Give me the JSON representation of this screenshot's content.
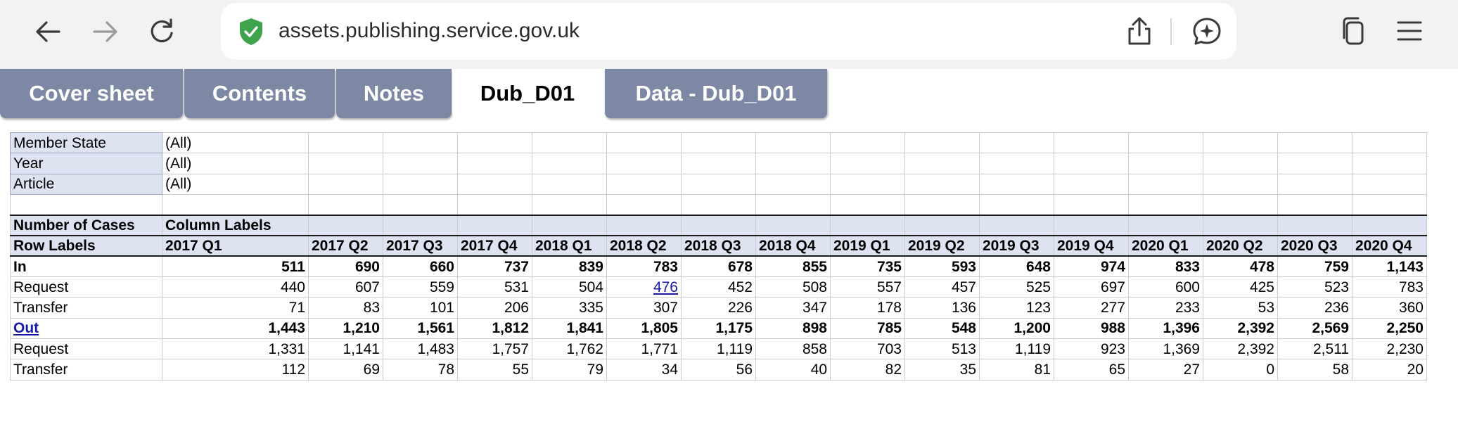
{
  "browser": {
    "url": "assets.publishing.service.gov.uk",
    "icons": {
      "back": "back-arrow-icon",
      "forward": "forward-arrow-icon",
      "reload": "reload-icon",
      "secure": "shield-check-icon",
      "share": "share-icon",
      "assistant": "assistant-icon",
      "tabs": "tabs-icon",
      "menu": "hamburger-menu-icon"
    }
  },
  "sheet_tabs": [
    {
      "label": "Cover sheet",
      "active": false
    },
    {
      "label": "Contents",
      "active": false
    },
    {
      "label": "Notes",
      "active": false
    },
    {
      "label": "Dub_D01",
      "active": true
    },
    {
      "label": "Data - Dub_D01",
      "active": false
    }
  ],
  "filters": [
    {
      "name": "Member State",
      "value": "(All)"
    },
    {
      "name": "Year",
      "value": "(All)"
    },
    {
      "name": "Article",
      "value": "(All)"
    }
  ],
  "pivot": {
    "values_label": "Number of Cases",
    "column_labels": "Column Labels",
    "row_labels": "Row Labels",
    "columns": [
      "2017 Q1",
      "2017 Q2",
      "2017 Q3",
      "2017 Q4",
      "2018 Q1",
      "2018 Q2",
      "2018 Q3",
      "2018 Q4",
      "2019 Q1",
      "2019 Q2",
      "2019 Q3",
      "2019 Q4",
      "2020 Q1",
      "2020 Q2",
      "2020 Q3",
      "2020 Q4"
    ],
    "rows": [
      {
        "label": "In",
        "bold": true,
        "values": [
          "511",
          "690",
          "660",
          "737",
          "839",
          "783",
          "678",
          "855",
          "735",
          "593",
          "648",
          "974",
          "833",
          "478",
          "759",
          "1,143"
        ]
      },
      {
        "label": "Request",
        "bold": false,
        "values": [
          "440",
          "607",
          "559",
          "531",
          "504",
          "476",
          "452",
          "508",
          "557",
          "457",
          "525",
          "697",
          "600",
          "425",
          "523",
          "783"
        ]
      },
      {
        "label": "Transfer",
        "bold": false,
        "values": [
          "71",
          "83",
          "101",
          "206",
          "335",
          "307",
          "226",
          "347",
          "178",
          "136",
          "123",
          "277",
          "233",
          "53",
          "236",
          "360"
        ]
      },
      {
        "label": "Out",
        "bold": true,
        "values": [
          "1,443",
          "1,210",
          "1,561",
          "1,812",
          "1,841",
          "1,805",
          "1,175",
          "898",
          "785",
          "548",
          "1,200",
          "988",
          "1,396",
          "2,392",
          "2,569",
          "2,250"
        ]
      },
      {
        "label": "Request",
        "bold": false,
        "values": [
          "1,331",
          "1,141",
          "1,483",
          "1,757",
          "1,762",
          "1,771",
          "1,119",
          "858",
          "703",
          "513",
          "1,119",
          "923",
          "1,369",
          "2,392",
          "2,511",
          "2,230"
        ]
      },
      {
        "label": "Transfer",
        "bold": false,
        "values": [
          "112",
          "69",
          "78",
          "55",
          "79",
          "34",
          "56",
          "40",
          "82",
          "35",
          "81",
          "65",
          "27",
          "0",
          "58",
          "20"
        ]
      }
    ]
  },
  "colors": {
    "tab_bg": "#7c88a4",
    "header_fill": "#dde3f1",
    "link": "#1a1aa8",
    "chrome_bg": "#f2f2f2"
  }
}
